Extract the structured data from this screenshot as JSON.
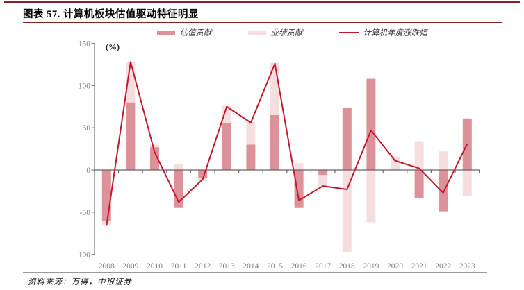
{
  "page": {
    "title": "图表 57. 计算机板块估值驱动特征明显",
    "source_note": "资料来源：万得，中银证券"
  },
  "colors": {
    "accent_dark_red": "#8C1F28",
    "valuation_bar": "#DC9298",
    "earnings_bar": "#F6DDDE",
    "price_line": "#C2182E",
    "axis": "#808080",
    "axis_label": "#7F7F7F"
  },
  "legend": {
    "items": [
      {
        "label": "估值贡献",
        "type": "bar"
      },
      {
        "label": "业绩贡献",
        "type": "bar"
      },
      {
        "label": "计算机年度涨跌幅",
        "type": "line"
      }
    ]
  },
  "chart_data": {
    "type": "bar",
    "subtype": "stacked-bars-with-line",
    "unit_label": "(%)",
    "categories": [
      "2008",
      "2009",
      "2010",
      "2011",
      "2012",
      "2013",
      "2014",
      "2015",
      "2016",
      "2017",
      "2018",
      "2019",
      "2020",
      "2021",
      "2022",
      "2023"
    ],
    "series": [
      {
        "name": "估值贡献",
        "type": "bar",
        "values": [
          -61,
          80,
          27,
          -45,
          -10,
          56,
          30,
          65,
          -45,
          -6,
          74,
          108,
          0,
          -33,
          -49,
          61
        ]
      },
      {
        "name": "业绩贡献",
        "type": "bar",
        "values": [
          -5,
          48,
          3,
          7,
          -3,
          20,
          27,
          62,
          8,
          -13,
          -97,
          -62,
          16,
          34,
          22,
          -31
        ]
      },
      {
        "name": "计算机年度涨跌幅",
        "type": "line",
        "values": [
          -66,
          128,
          21,
          -38,
          -11,
          75,
          56,
          126,
          -36,
          -19,
          -23,
          47,
          11,
          2,
          -27,
          31
        ]
      }
    ],
    "title": "计算机板块估值驱动特征明显",
    "xlabel": "",
    "ylabel": "(%)",
    "ylim": [
      -100,
      150
    ],
    "yticks": [
      150,
      100,
      50,
      0,
      -50,
      -100
    ],
    "grid": false,
    "legend_position": "top"
  }
}
